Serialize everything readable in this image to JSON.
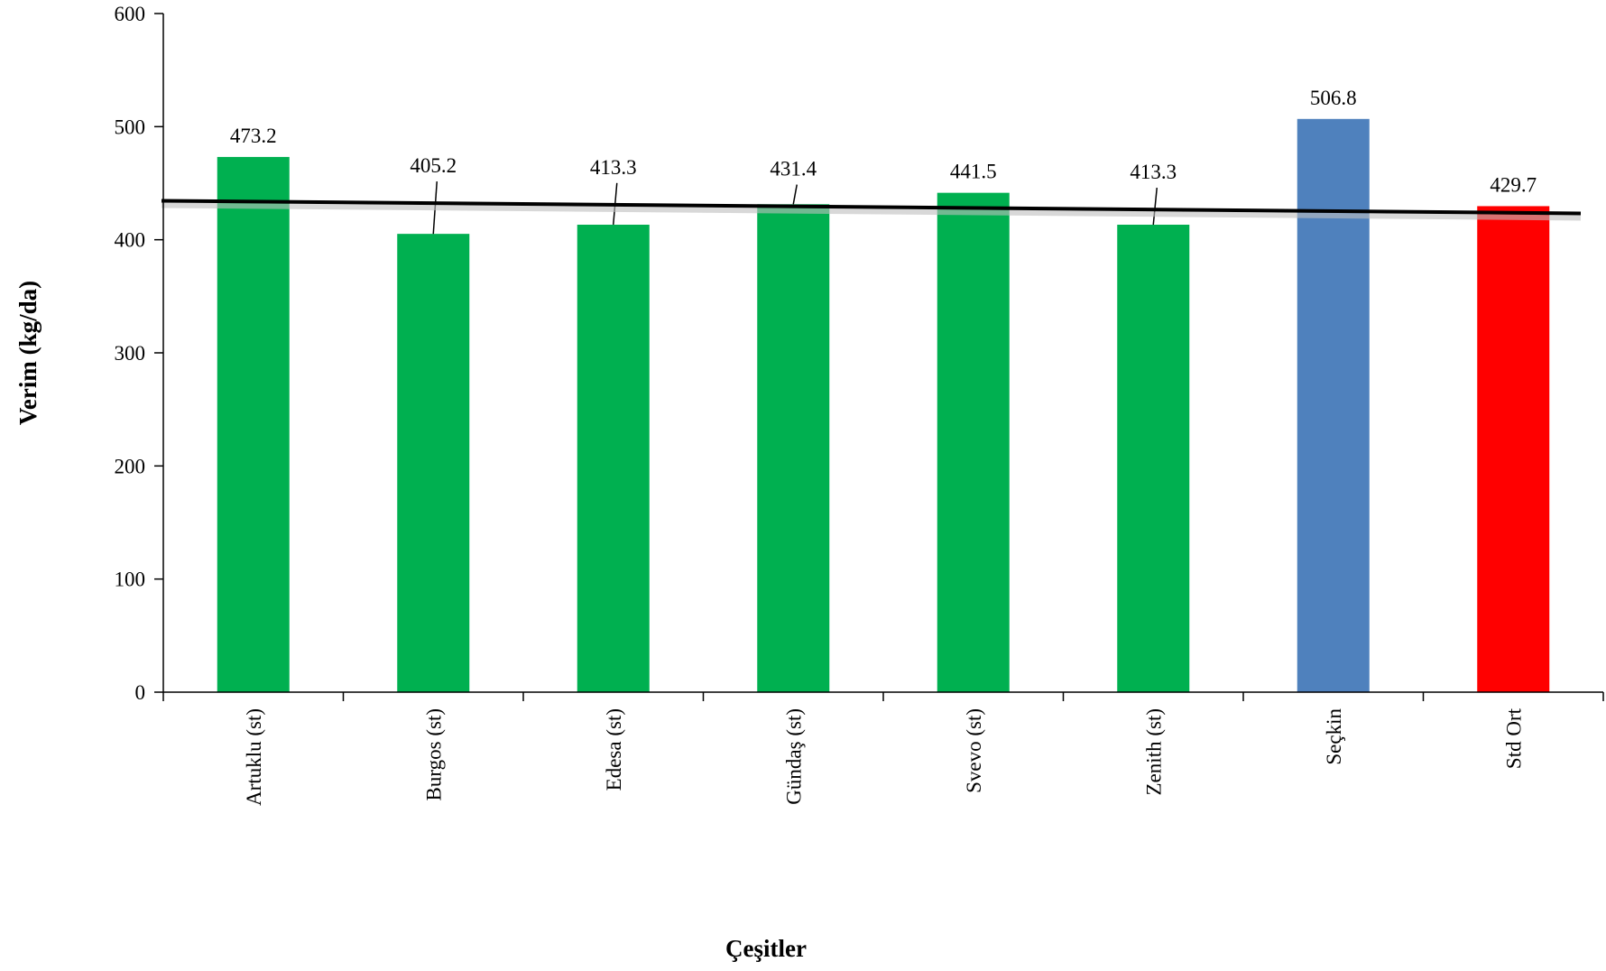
{
  "chart_data": {
    "type": "bar",
    "title": "",
    "xlabel": "Çeşitler",
    "ylabel": "Verim (kg/da)",
    "ylim": [
      0,
      600
    ],
    "yticks": [
      "0",
      "100",
      "200",
      "300",
      "400",
      "500",
      "600"
    ],
    "grid": false,
    "legend": "none",
    "categories": [
      "Artuklu (st)",
      "Burgos (st)",
      "Edesa (st)",
      "Gündaş (st)",
      "Svevo (st)",
      "Zenith (st)",
      "Seçkin",
      "Std Ort"
    ],
    "values": [
      473.2,
      405.2,
      413.3,
      431.4,
      441.5,
      413.3,
      506.8,
      429.7
    ],
    "data_labels": [
      "473.2",
      "405.2",
      "413.3",
      "431.4",
      "441.5",
      "413.3",
      "506.8",
      "429.7"
    ],
    "colors": [
      "#00b050",
      "#00b050",
      "#00b050",
      "#00b050",
      "#00b050",
      "#00b050",
      "#4f81bd",
      "#ff0000"
    ],
    "reference_line": {
      "value": 429.7,
      "color": "#000000"
    }
  }
}
